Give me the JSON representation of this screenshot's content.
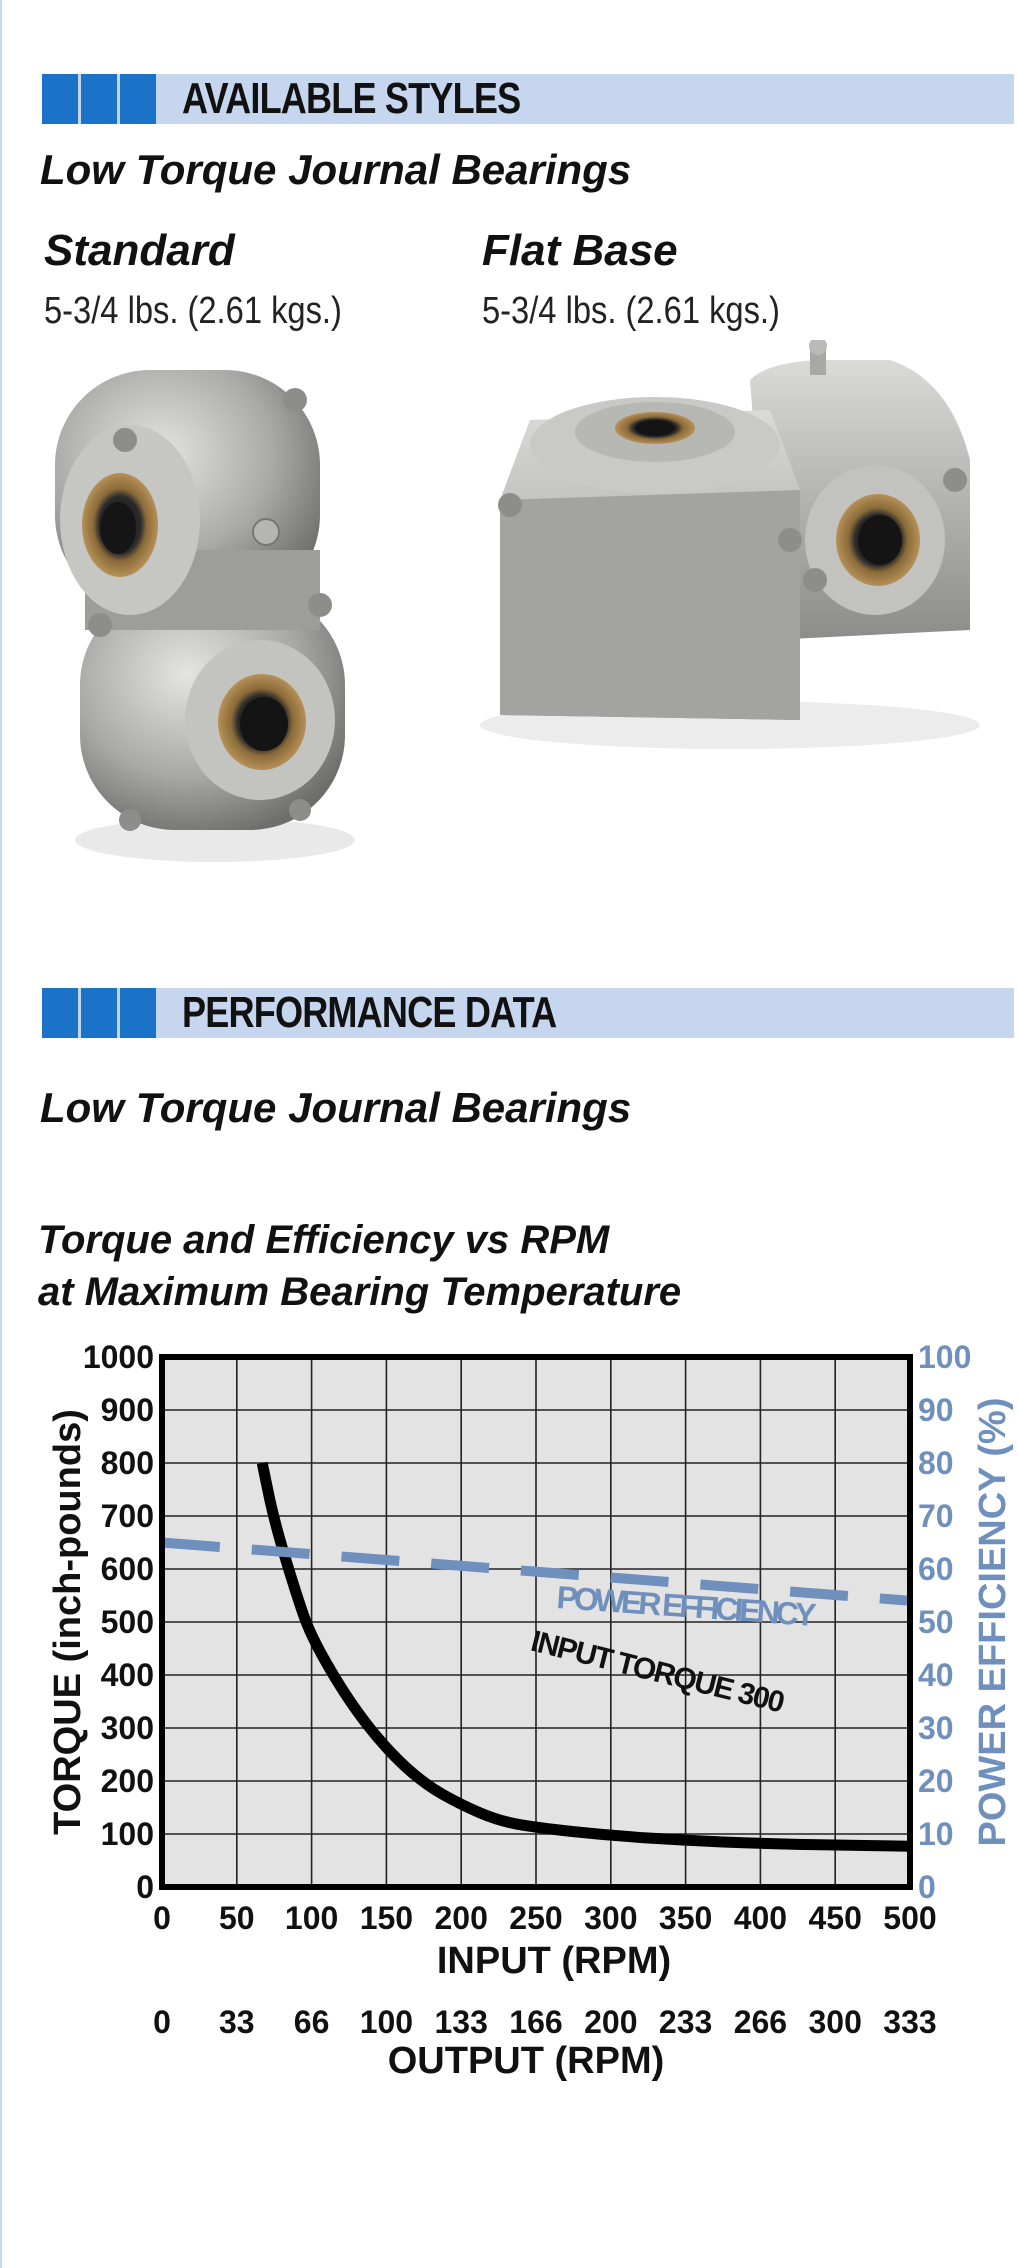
{
  "sections": {
    "styles": {
      "title": "AVAILABLE STYLES",
      "subtitle": "Low Torque Journal Bearings"
    },
    "performance": {
      "title": "PERFORMANCE DATA",
      "subtitle": "Low Torque Journal Bearings"
    }
  },
  "products": [
    {
      "name": "Standard",
      "weight": "5-3/4 lbs.  (2.61 kgs.)"
    },
    {
      "name": "Flat Base",
      "weight": "5-3/4 lbs.  (2.61 kgs.)"
    }
  ],
  "colors": {
    "accent_blue": "#1a73c8",
    "bar_light": "#c5d6ee",
    "efficiency": "#6f8fbd",
    "plot_bg": "#e3e3e3"
  },
  "chart_data": {
    "type": "line",
    "title_line1": "Torque and Efficiency vs RPM",
    "title_line2": "at Maximum Bearing Temperature",
    "xlabel": "INPUT (RPM)",
    "xlabel2": "OUTPUT (RPM)",
    "ylabel": "TORQUE (inch-pounds)",
    "ylabel_right": "POWER EFFICIENCY (%)",
    "xlim": [
      0,
      500
    ],
    "ylim": [
      0,
      1000
    ],
    "ylim_right": [
      0,
      100
    ],
    "x_ticks": [
      "0",
      "50",
      "100",
      "150",
      "200",
      "250",
      "300",
      "350",
      "400",
      "450",
      "500"
    ],
    "x2_ticks": [
      "0",
      "33",
      "66",
      "100",
      "133",
      "166",
      "200",
      "233",
      "266",
      "300",
      "333"
    ],
    "y_ticks": [
      "0",
      "100",
      "200",
      "300",
      "400",
      "500",
      "600",
      "700",
      "800",
      "900",
      "1000"
    ],
    "y_right_ticks": [
      "0",
      "10",
      "20",
      "30",
      "40",
      "50",
      "60",
      "70",
      "80",
      "90",
      "100"
    ],
    "grid": true,
    "series": [
      {
        "name": "INPUT TORQUE 300",
        "axis": "left",
        "style": "solid",
        "color": "#000000",
        "x": [
          67,
          75,
          90,
          100,
          125,
          150,
          175,
          200,
          225,
          250,
          300,
          350,
          400,
          450,
          500
        ],
        "y": [
          800,
          690,
          550,
          470,
          350,
          260,
          195,
          155,
          125,
          112,
          97,
          88,
          82,
          79,
          77
        ]
      },
      {
        "name": "POWER EFFICIENCY",
        "axis": "right",
        "style": "dashed",
        "color": "#6f8fbd",
        "x": [
          0,
          500
        ],
        "y": [
          65,
          54
        ]
      }
    ]
  }
}
